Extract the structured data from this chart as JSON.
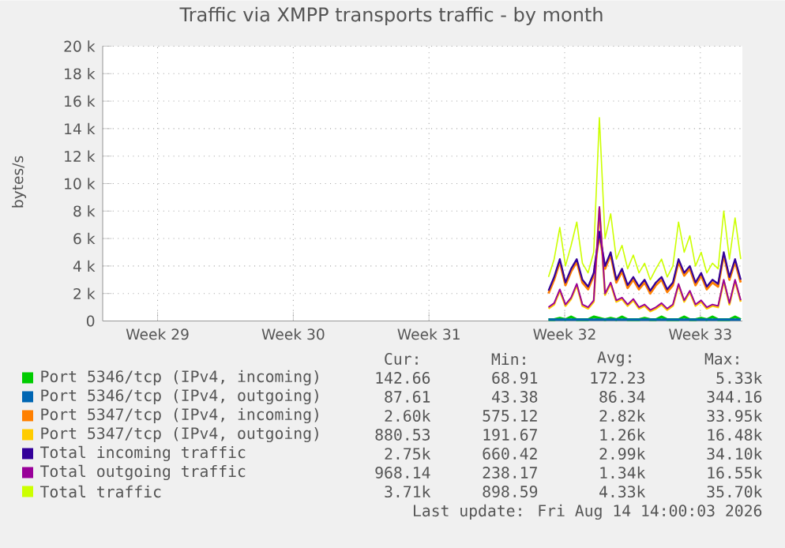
{
  "chart_data": {
    "type": "line",
    "title": "Traffic via XMPP transports traffic - by month",
    "ylabel": "bytes/s",
    "grid": true,
    "legend": "bottom",
    "xlim": [
      "2026-07-12T16:00",
      "2026-08-14T16:00"
    ],
    "xticks": [
      {
        "value": "2026-07-15T12:00",
        "label": "Week 29"
      },
      {
        "value": "2026-07-22T12:00",
        "label": "Week 30"
      },
      {
        "value": "2026-07-29T12:00",
        "label": "Week 31"
      },
      {
        "value": "2026-08-05T12:00",
        "label": "Week 32"
      },
      {
        "value": "2026-08-12T12:00",
        "label": "Week 33"
      }
    ],
    "ylim": [
      0,
      20000
    ],
    "yticks": [
      0,
      {
        "value": 2000,
        "label": "2 k"
      },
      {
        "value": 4000,
        "label": "4 k"
      },
      {
        "value": 6000,
        "label": "6 k"
      },
      {
        "value": 8000,
        "label": "8 k"
      },
      {
        "value": 10000,
        "label": "10 k"
      },
      {
        "value": 12000,
        "label": "12 k"
      },
      {
        "value": 14000,
        "label": "14 k"
      },
      {
        "value": 16000,
        "label": "16 k"
      },
      {
        "value": 18000,
        "label": "18 k"
      },
      {
        "value": 20000,
        "label": "20 k"
      }
    ],
    "x": [
      "2026-08-04T16:00",
      "2026-08-04T23:00",
      "2026-08-05T06:00",
      "2026-08-05T13:00",
      "2026-08-05T20:00",
      "2026-08-06T03:00",
      "2026-08-06T10:00",
      "2026-08-06T17:00",
      "2026-08-07T00:00",
      "2026-08-07T07:00",
      "2026-08-07T14:00",
      "2026-08-07T21:00",
      "2026-08-08T04:00",
      "2026-08-08T11:00",
      "2026-08-08T18:00",
      "2026-08-09T01:00",
      "2026-08-09T08:00",
      "2026-08-09T15:00",
      "2026-08-09T22:00",
      "2026-08-10T05:00",
      "2026-08-10T12:00",
      "2026-08-10T19:00",
      "2026-08-11T02:00",
      "2026-08-11T09:00",
      "2026-08-11T16:00",
      "2026-08-11T23:00",
      "2026-08-12T06:00",
      "2026-08-12T13:00",
      "2026-08-12T20:00",
      "2026-08-13T03:00",
      "2026-08-13T10:00",
      "2026-08-13T17:00",
      "2026-08-14T00:00",
      "2026-08-14T07:00",
      "2026-08-14T14:00"
    ],
    "series": [
      {
        "name": "Port 5346/tcp (IPv4, incoming)",
        "color": "#00cc00",
        "values": [
          100,
          100,
          200,
          100,
          300,
          100,
          100,
          100,
          300,
          200,
          100,
          200,
          100,
          300,
          100,
          100,
          100,
          200,
          100,
          100,
          300,
          100,
          100,
          100,
          300,
          100,
          100,
          200,
          100,
          300,
          100,
          100,
          100,
          300,
          100
        ]
      },
      {
        "name": "Port 5346/tcp (IPv4, outgoing)",
        "color": "#0066b3",
        "values": [
          100,
          100,
          100,
          100,
          100,
          100,
          100,
          100,
          100,
          100,
          100,
          100,
          100,
          100,
          100,
          100,
          100,
          100,
          100,
          100,
          100,
          100,
          100,
          100,
          100,
          100,
          100,
          100,
          100,
          100,
          100,
          100,
          100,
          100,
          100
        ]
      },
      {
        "name": "Port 5347/tcp (IPv4, incoming)",
        "color": "#ff8000",
        "values": [
          2000,
          3000,
          4300,
          2600,
          3600,
          4300,
          2800,
          2300,
          3300,
          6300,
          3800,
          4800,
          2800,
          3600,
          2400,
          3000,
          2300,
          2800,
          2000,
          2600,
          3000,
          2100,
          2600,
          4300,
          3300,
          3800,
          2600,
          3300,
          2300,
          2800,
          2500,
          4800,
          3000,
          4300,
          2800
        ]
      },
      {
        "name": "Port 5347/tcp (IPv4, outgoing)",
        "color": "#ffcc00",
        "values": [
          900,
          1200,
          2200,
          1100,
          1600,
          2600,
          1100,
          900,
          1400,
          8200,
          1900,
          2700,
          1400,
          1600,
          1100,
          1500,
          900,
          1100,
          700,
          900,
          1200,
          800,
          1100,
          2600,
          1400,
          2100,
          1100,
          1400,
          900,
          1100,
          1000,
          2900,
          1200,
          2900,
          1400
        ]
      },
      {
        "name": "Total incoming traffic",
        "color": "#330099",
        "values": [
          2200,
          3200,
          4500,
          2800,
          3800,
          4500,
          3000,
          2500,
          3500,
          6500,
          4000,
          5000,
          3000,
          3800,
          2600,
          3200,
          2500,
          3000,
          2200,
          2800,
          3200,
          2300,
          2800,
          4500,
          3500,
          4000,
          2800,
          3500,
          2500,
          3000,
          2700,
          5000,
          3200,
          4500,
          3000
        ]
      },
      {
        "name": "Total outgoing traffic",
        "color": "#990099",
        "values": [
          1000,
          1300,
          2300,
          1200,
          1700,
          2700,
          1200,
          1000,
          1500,
          8300,
          2000,
          2800,
          1500,
          1700,
          1200,
          1600,
          1000,
          1200,
          800,
          1000,
          1300,
          900,
          1200,
          2700,
          1500,
          2200,
          1200,
          1500,
          1000,
          1200,
          1100,
          3000,
          1300,
          3000,
          1500
        ]
      },
      {
        "name": "Total traffic",
        "color": "#ccff00",
        "values": [
          3200,
          4500,
          6800,
          4000,
          5500,
          7200,
          4200,
          3500,
          5000,
          14800,
          6000,
          7800,
          4500,
          5500,
          3800,
          4800,
          3500,
          4200,
          3000,
          3800,
          4500,
          3200,
          4000,
          7200,
          5000,
          6200,
          4000,
          5000,
          3500,
          4200,
          3800,
          8000,
          4500,
          7500,
          4500
        ]
      }
    ],
    "annotations": [
      "Cur:",
      "Min:",
      "Avg:",
      "Max:",
      "142.66",
      "68.91",
      "172.23",
      "5.33k",
      "87.61",
      "43.38",
      "86.34",
      "344.16",
      "2.60k",
      "575.12",
      "2.82k",
      "33.95k",
      "880.53",
      "191.67",
      "1.26k",
      "16.48k",
      "2.75k",
      "660.42",
      "2.99k",
      "34.10k",
      "968.14",
      "238.17",
      "1.34k",
      "16.55k",
      "3.71k",
      "898.59",
      "4.33k",
      "35.70k",
      "Last update: Fri Aug 14 14:00:03 2026"
    ]
  }
}
